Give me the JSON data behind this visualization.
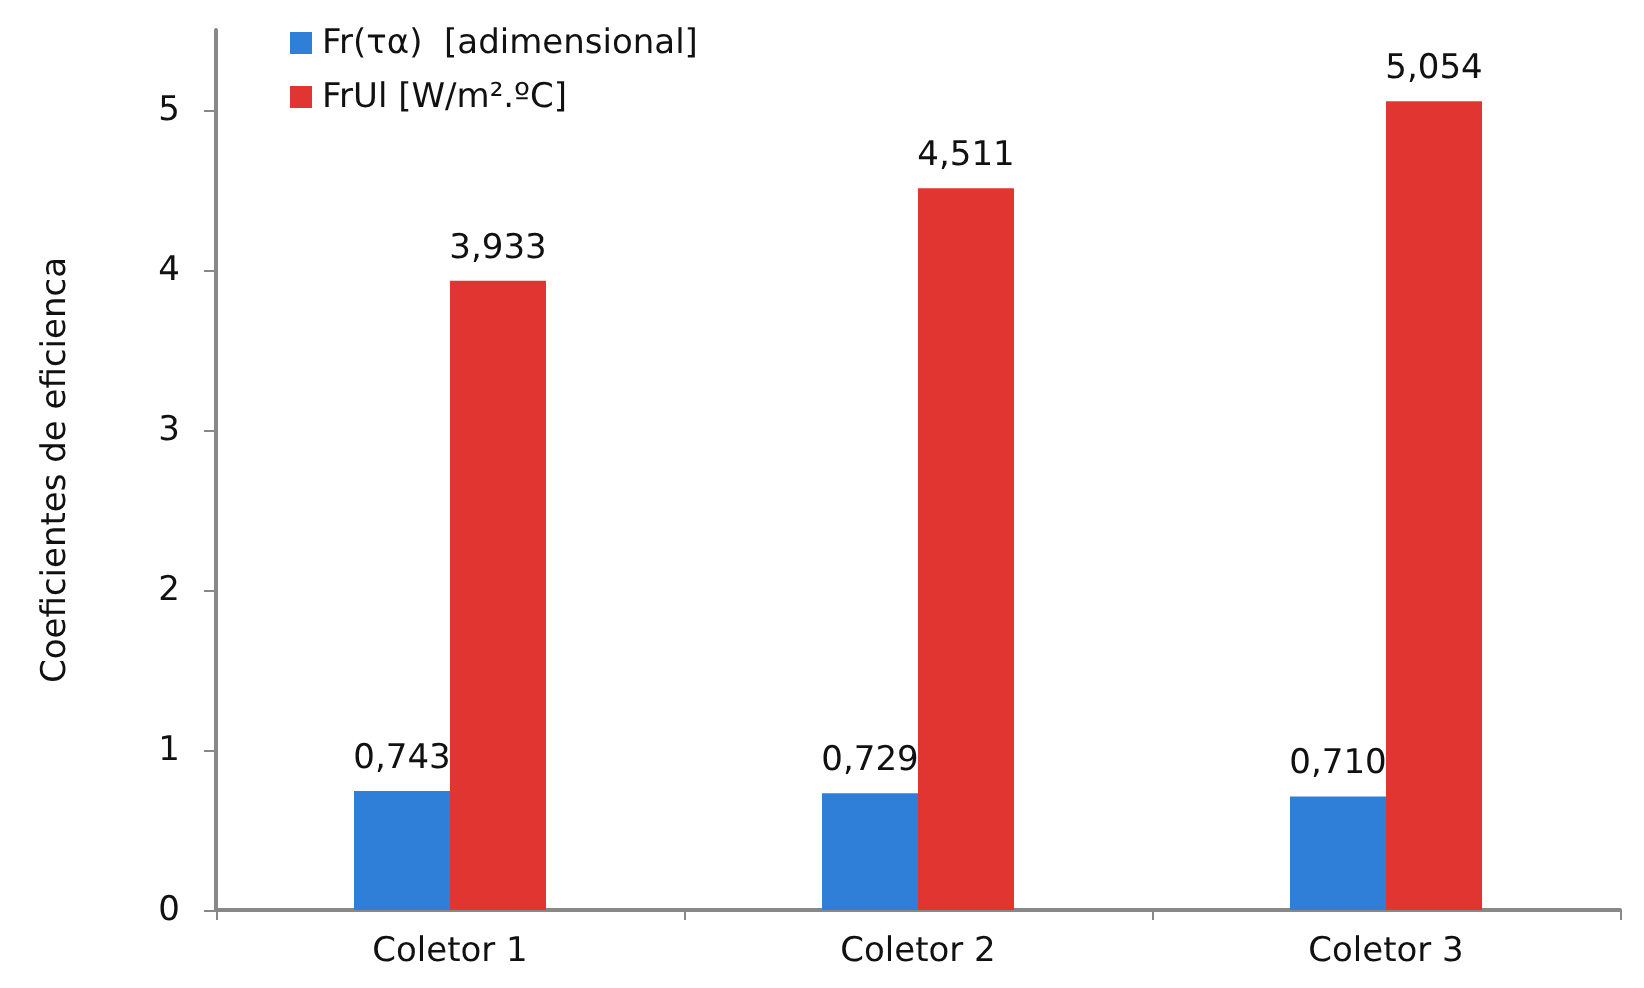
{
  "chart_data": {
    "type": "bar",
    "ylabel": "Coeficientes de eficienca",
    "categories": [
      "Coletor 1",
      "Coletor 2",
      "Coletor 3"
    ],
    "series": [
      {
        "name": "Fr(τα)  [adimensional]",
        "color": "#2f7ed8",
        "values": [
          0.743,
          0.729,
          0.71
        ],
        "value_labels": [
          "0,743",
          "0,729",
          "0,710"
        ]
      },
      {
        "name": "FrUl [W/m².ºC]",
        "color": "#e03531",
        "values": [
          3.933,
          4.511,
          5.054
        ],
        "value_labels": [
          "3,933",
          "4,511",
          "5,054"
        ]
      }
    ],
    "ylim": [
      0,
      5.5
    ],
    "yticks": [
      0,
      1,
      2,
      3,
      4,
      5
    ],
    "grid": false,
    "legend": "top left"
  }
}
